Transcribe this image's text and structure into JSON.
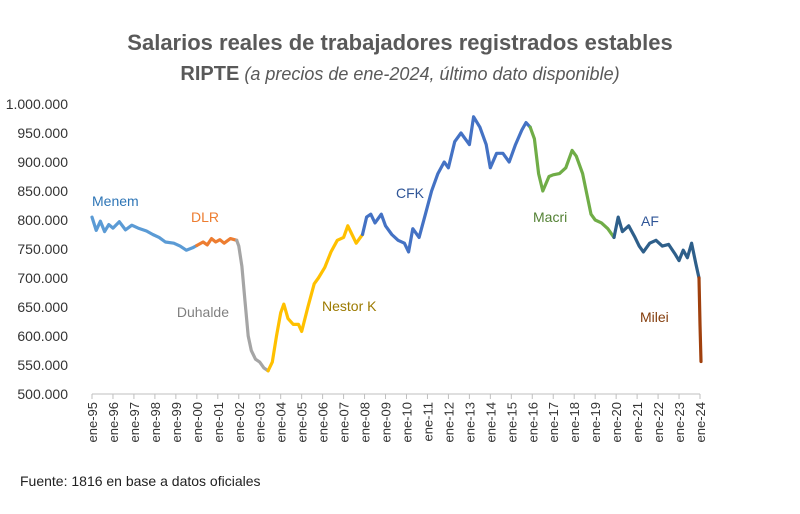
{
  "title": "Salarios reales de trabajadores registrados estables",
  "subtitle_main": "RIPTE",
  "subtitle_note": "(a precios de ene-2024, último dato disponible)",
  "source": "Fuente: 1816 en base a datos oficiales",
  "chart_data": {
    "type": "line",
    "title": "Salarios reales de trabajadores registrados estables",
    "subtitle": "RIPTE (a precios de ene-2024, último dato disponible)",
    "xlabel": "",
    "ylabel": "",
    "ylim": [
      500000,
      1000000
    ],
    "y_ticks": [
      500000,
      550000,
      600000,
      650000,
      700000,
      750000,
      800000,
      850000,
      900000,
      950000,
      1000000
    ],
    "y_tick_labels": [
      "500.000",
      "550.000",
      "600.000",
      "650.000",
      "700.000",
      "750.000",
      "800.000",
      "850.000",
      "900.000",
      "950.000",
      "1.000.000"
    ],
    "x_tick_labels": [
      "ene-95",
      "ene-96",
      "ene-97",
      "ene-98",
      "ene-99",
      "ene-00",
      "ene-01",
      "ene-02",
      "ene-03",
      "ene-04",
      "ene-05",
      "ene-06",
      "ene-07",
      "ene-08",
      "ene-09",
      "ene-10",
      "ene-11",
      "ene-12",
      "ene-13",
      "ene-14",
      "ene-15",
      "ene-16",
      "ene-17",
      "ene-18",
      "ene-19",
      "ene-20",
      "ene-21",
      "ene-22",
      "ene-23",
      "ene-24"
    ],
    "x_unit": "years (1995 = ene-95)",
    "grid": false,
    "legend": "none (period labels on chart)",
    "series": [
      {
        "name": "Menem",
        "color": "#5b9bd5",
        "label_color": "#2e75b6",
        "points": [
          [
            1995.0,
            805000
          ],
          [
            1995.2,
            782000
          ],
          [
            1995.4,
            798000
          ],
          [
            1995.6,
            780000
          ],
          [
            1995.8,
            792000
          ],
          [
            1996.0,
            786000
          ],
          [
            1996.3,
            797000
          ],
          [
            1996.6,
            783000
          ],
          [
            1996.9,
            791000
          ],
          [
            1997.2,
            786000
          ],
          [
            1997.6,
            781000
          ],
          [
            1997.9,
            775000
          ],
          [
            1998.2,
            770000
          ],
          [
            1998.5,
            762000
          ],
          [
            1998.9,
            760000
          ],
          [
            1999.2,
            755000
          ],
          [
            1999.5,
            748000
          ],
          [
            1999.8,
            752000
          ],
          [
            2000.0,
            756000
          ]
        ]
      },
      {
        "name": "DLR",
        "color": "#ed7d31",
        "label_color": "#ed7d31",
        "points": [
          [
            2000.0,
            756000
          ],
          [
            2000.3,
            762000
          ],
          [
            2000.5,
            757000
          ],
          [
            2000.7,
            768000
          ],
          [
            2000.9,
            762000
          ],
          [
            2001.1,
            766000
          ],
          [
            2001.3,
            760000
          ],
          [
            2001.6,
            768000
          ],
          [
            2001.9,
            765000
          ]
        ]
      },
      {
        "name": "Duhalde",
        "color": "#a5a5a5",
        "label_color": "#808080",
        "points": [
          [
            2001.9,
            765000
          ],
          [
            2002.0,
            755000
          ],
          [
            2002.15,
            720000
          ],
          [
            2002.3,
            660000
          ],
          [
            2002.45,
            600000
          ],
          [
            2002.6,
            575000
          ],
          [
            2002.8,
            560000
          ],
          [
            2003.0,
            555000
          ],
          [
            2003.2,
            545000
          ],
          [
            2003.4,
            540000
          ]
        ]
      },
      {
        "name": "Nestor K",
        "color": "#ffc000",
        "label_color": "#9c7a00",
        "points": [
          [
            2003.4,
            540000
          ],
          [
            2003.6,
            555000
          ],
          [
            2003.8,
            600000
          ],
          [
            2004.0,
            640000
          ],
          [
            2004.15,
            655000
          ],
          [
            2004.35,
            630000
          ],
          [
            2004.6,
            620000
          ],
          [
            2004.85,
            620000
          ],
          [
            2005.0,
            608000
          ],
          [
            2005.3,
            650000
          ],
          [
            2005.6,
            690000
          ],
          [
            2005.8,
            700000
          ],
          [
            2006.1,
            718000
          ],
          [
            2006.4,
            745000
          ],
          [
            2006.7,
            765000
          ],
          [
            2007.0,
            770000
          ],
          [
            2007.2,
            790000
          ],
          [
            2007.4,
            775000
          ],
          [
            2007.6,
            760000
          ],
          [
            2007.9,
            775000
          ]
        ]
      },
      {
        "name": "CFK",
        "color": "#4472c4",
        "label_color": "#2f5597",
        "points": [
          [
            2007.9,
            775000
          ],
          [
            2008.1,
            805000
          ],
          [
            2008.3,
            810000
          ],
          [
            2008.5,
            795000
          ],
          [
            2008.8,
            810000
          ],
          [
            2009.0,
            790000
          ],
          [
            2009.3,
            775000
          ],
          [
            2009.6,
            765000
          ],
          [
            2009.9,
            760000
          ],
          [
            2010.1,
            745000
          ],
          [
            2010.3,
            785000
          ],
          [
            2010.6,
            770000
          ],
          [
            2010.9,
            810000
          ],
          [
            2011.2,
            850000
          ],
          [
            2011.5,
            880000
          ],
          [
            2011.8,
            900000
          ],
          [
            2012.0,
            890000
          ],
          [
            2012.3,
            935000
          ],
          [
            2012.6,
            950000
          ],
          [
            2012.8,
            940000
          ],
          [
            2013.0,
            930000
          ],
          [
            2013.2,
            978000
          ],
          [
            2013.5,
            960000
          ],
          [
            2013.8,
            930000
          ],
          [
            2014.0,
            890000
          ],
          [
            2014.3,
            915000
          ],
          [
            2014.6,
            915000
          ],
          [
            2014.9,
            900000
          ],
          [
            2015.2,
            930000
          ],
          [
            2015.5,
            955000
          ],
          [
            2015.7,
            968000
          ],
          [
            2015.9,
            960000
          ]
        ]
      },
      {
        "name": "Macri",
        "color": "#70ad47",
        "label_color": "#548235",
        "points": [
          [
            2015.9,
            960000
          ],
          [
            2016.1,
            940000
          ],
          [
            2016.3,
            880000
          ],
          [
            2016.5,
            850000
          ],
          [
            2016.8,
            875000
          ],
          [
            2017.0,
            878000
          ],
          [
            2017.3,
            880000
          ],
          [
            2017.6,
            890000
          ],
          [
            2017.9,
            920000
          ],
          [
            2018.1,
            910000
          ],
          [
            2018.4,
            880000
          ],
          [
            2018.6,
            845000
          ],
          [
            2018.8,
            810000
          ],
          [
            2019.0,
            800000
          ],
          [
            2019.3,
            795000
          ],
          [
            2019.6,
            785000
          ],
          [
            2019.9,
            770000
          ]
        ]
      },
      {
        "name": "AF",
        "color": "#2e5f8a",
        "label_color": "#2f5597",
        "points": [
          [
            2019.9,
            770000
          ],
          [
            2020.1,
            805000
          ],
          [
            2020.3,
            780000
          ],
          [
            2020.6,
            790000
          ],
          [
            2020.9,
            770000
          ],
          [
            2021.1,
            755000
          ],
          [
            2021.3,
            745000
          ],
          [
            2021.6,
            760000
          ],
          [
            2021.9,
            765000
          ],
          [
            2022.2,
            755000
          ],
          [
            2022.5,
            758000
          ],
          [
            2022.8,
            742000
          ],
          [
            2023.0,
            730000
          ],
          [
            2023.2,
            748000
          ],
          [
            2023.4,
            735000
          ],
          [
            2023.6,
            760000
          ],
          [
            2023.8,
            725000
          ],
          [
            2023.95,
            700000
          ]
        ]
      },
      {
        "name": "Milei",
        "color": "#a0400d",
        "label_color": "#833c0b",
        "points": [
          [
            2023.95,
            700000
          ],
          [
            2024.0,
            620000
          ],
          [
            2024.05,
            556000
          ]
        ]
      }
    ]
  }
}
